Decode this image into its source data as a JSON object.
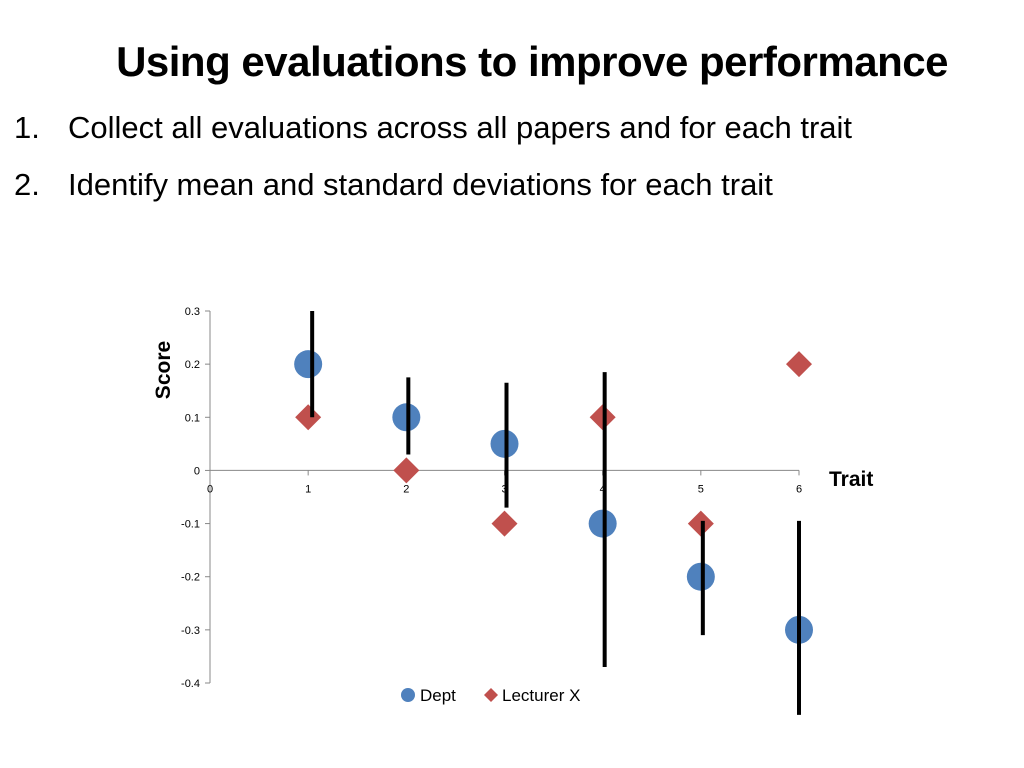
{
  "slide": {
    "title": "Using evaluations to improve performance",
    "bullets": [
      {
        "num": "1.",
        "text": "Collect all evaluations across all papers and for each trait"
      },
      {
        "num": "2.",
        "text": "Identify mean and standard deviations for each trait"
      }
    ]
  },
  "chart_data": {
    "type": "scatter",
    "title": "",
    "xlabel": "Trait",
    "ylabel": "Score",
    "xlim": [
      0,
      6
    ],
    "ylim": [
      -0.4,
      0.3
    ],
    "x_ticks": [
      "0",
      "1",
      "2",
      "3",
      "4",
      "5",
      "6"
    ],
    "y_ticks": [
      "0.3",
      "0.2",
      "0.1",
      "0",
      "-0.1",
      "-0.2",
      "-0.3",
      "-0.4"
    ],
    "legend_position": "bottom",
    "series": [
      {
        "name": "Dept",
        "marker": "circle",
        "color": "#4F81BD",
        "x": [
          1,
          2,
          3,
          4,
          5,
          6
        ],
        "y": [
          0.2,
          0.1,
          0.05,
          -0.1,
          -0.2,
          -0.3
        ],
        "error_low": [
          0.1,
          0.03,
          -0.07,
          -0.37,
          -0.31,
          -0.46
        ],
        "error_high": [
          0.3,
          0.175,
          0.165,
          0.185,
          -0.095,
          -0.095
        ]
      },
      {
        "name": "Lecturer X",
        "marker": "diamond",
        "color": "#C0504D",
        "x": [
          1,
          2,
          3,
          4,
          5,
          6
        ],
        "y": [
          0.1,
          0.0,
          -0.1,
          0.1,
          -0.1,
          0.2
        ]
      }
    ]
  }
}
